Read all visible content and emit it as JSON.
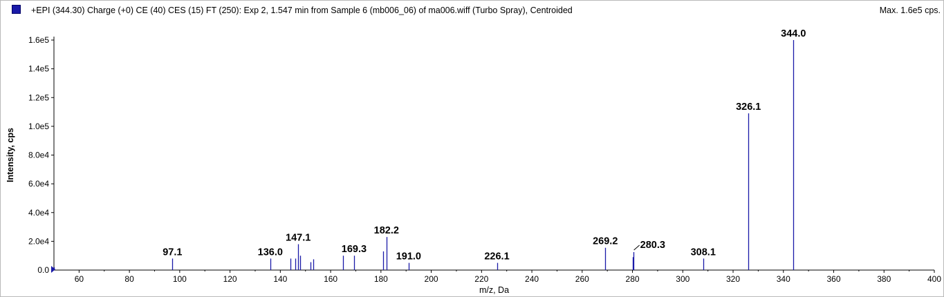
{
  "header": {
    "title": "+EPI (344.30) Charge (+0) CE (40) CES (15) FT (250): Exp 2, 1.547 min from Sample 6 (mb006_06) of ma006.wiff (Turbo Spray), Centroided",
    "max_label": "Max. 1.6e5 cps.",
    "series_color": "#1a1aa8"
  },
  "chart_data": {
    "type": "bar",
    "title": "+EPI (344.30) Charge (+0) CE (40) CES (15) FT (250): Exp 2, 1.547 min from Sample 6 (mb006_06) of ma006.wiff (Turbo Spray), Centroided",
    "xlabel": "m/z, Da",
    "ylabel": "Intensity, cps",
    "xlim": [
      50,
      400
    ],
    "ylim": [
      0,
      160000
    ],
    "x_ticks": [
      60,
      80,
      100,
      120,
      140,
      160,
      180,
      200,
      220,
      240,
      260,
      280,
      300,
      320,
      340,
      360,
      380,
      400
    ],
    "y_ticks": [
      0,
      20000,
      40000,
      60000,
      80000,
      100000,
      120000,
      140000,
      160000
    ],
    "y_tick_labels": [
      "0.0",
      "2.0e4",
      "4.0e4",
      "6.0e4",
      "8.0e4",
      "1.0e5",
      "1.2e5",
      "1.4e5",
      "1.6e5"
    ],
    "grid": false,
    "color": "#1a1aa8",
    "peaks": [
      {
        "mz": 50.0,
        "intensity": 2000
      },
      {
        "mz": 97.1,
        "intensity": 8000
      },
      {
        "mz": 136.0,
        "intensity": 8000
      },
      {
        "mz": 144.0,
        "intensity": 8000
      },
      {
        "mz": 146.0,
        "intensity": 8000
      },
      {
        "mz": 147.1,
        "intensity": 18000
      },
      {
        "mz": 148.0,
        "intensity": 10000
      },
      {
        "mz": 152.0,
        "intensity": 5500
      },
      {
        "mz": 153.0,
        "intensity": 7500
      },
      {
        "mz": 165.0,
        "intensity": 10000
      },
      {
        "mz": 169.3,
        "intensity": 10000
      },
      {
        "mz": 181.0,
        "intensity": 13000
      },
      {
        "mz": 182.2,
        "intensity": 23000
      },
      {
        "mz": 191.0,
        "intensity": 5000
      },
      {
        "mz": 226.1,
        "intensity": 5000
      },
      {
        "mz": 269.2,
        "intensity": 15500
      },
      {
        "mz": 280.0,
        "intensity": 9000
      },
      {
        "mz": 280.3,
        "intensity": 12500
      },
      {
        "mz": 308.1,
        "intensity": 8000
      },
      {
        "mz": 326.1,
        "intensity": 109000
      },
      {
        "mz": 344.0,
        "intensity": 160000
      }
    ],
    "labels": [
      {
        "text": "97.1",
        "mz": 97.1
      },
      {
        "text": "136.0",
        "mz": 136.0
      },
      {
        "text": "147.1",
        "mz": 147.1
      },
      {
        "text": "169.3",
        "mz": 169.3
      },
      {
        "text": "182.2",
        "mz": 182.2
      },
      {
        "text": "191.0",
        "mz": 191.0
      },
      {
        "text": "226.1",
        "mz": 226.1
      },
      {
        "text": "269.2",
        "mz": 269.2
      },
      {
        "text": "280.3",
        "mz": 280.3
      },
      {
        "text": "308.1",
        "mz": 308.1
      },
      {
        "text": "326.1",
        "mz": 326.1
      },
      {
        "text": "344.0",
        "mz": 344.0
      }
    ]
  }
}
